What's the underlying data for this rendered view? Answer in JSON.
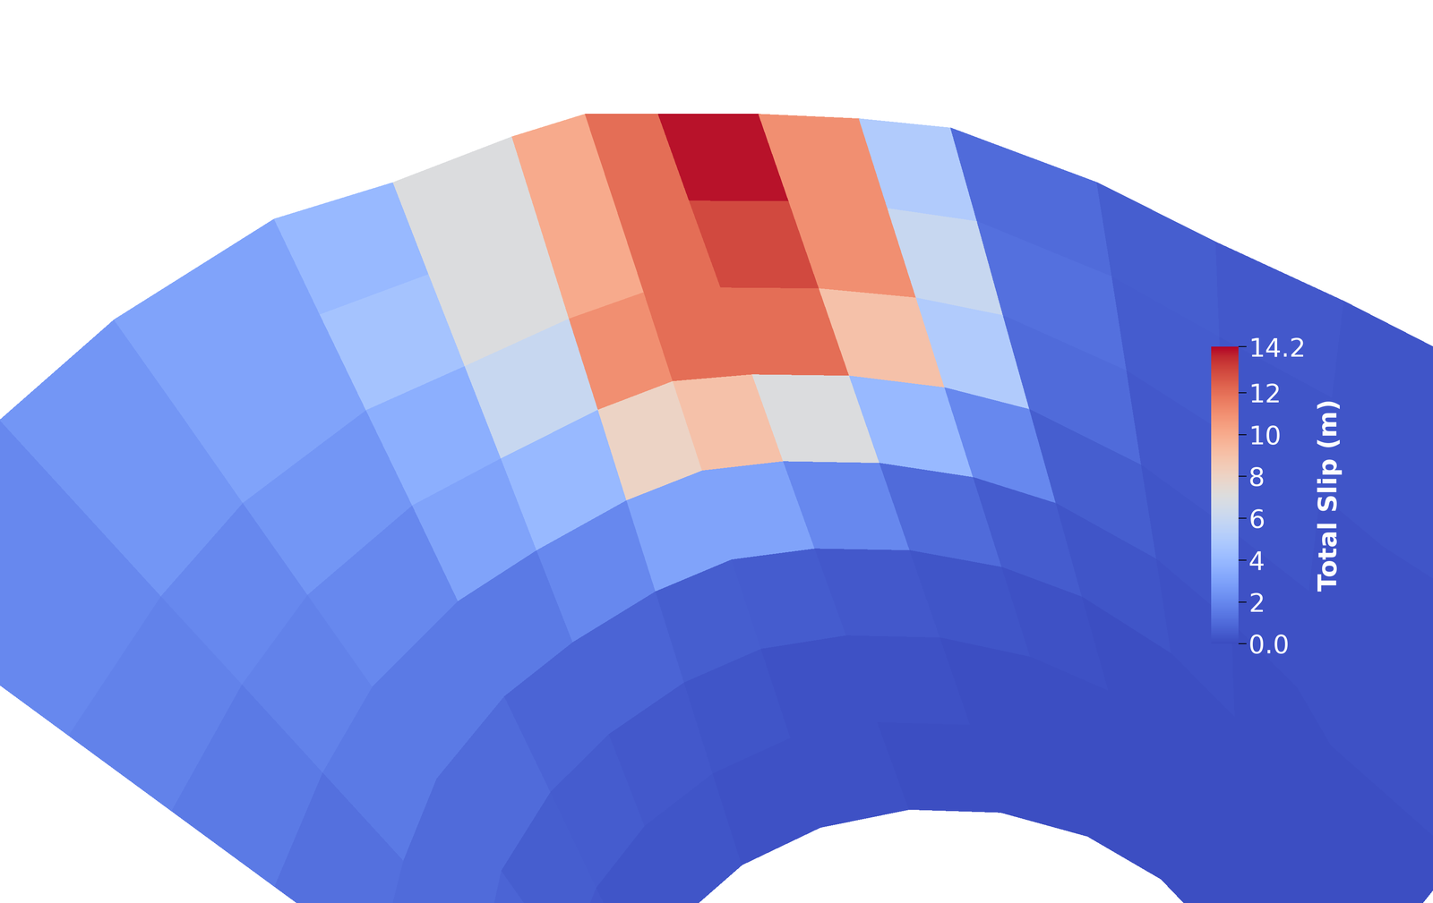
{
  "chart_data": {
    "type": "heatmap",
    "colorbar_label": "Total Slip (m)",
    "color": "coolwarm",
    "tick_labels": false,
    "clim": [
      0,
      14.2
    ],
    "colorbar_ticks": [
      {
        "value": 0,
        "label": "0.0"
      },
      2,
      4,
      6,
      8,
      10,
      12,
      14.2
    ],
    "cells": [
      [
        2,
        2.5,
        3,
        4,
        7,
        10,
        12,
        14,
        11,
        5,
        1,
        0.6,
        0.4,
        0.3,
        0.3
      ],
      [
        2,
        2.5,
        3,
        4.5,
        7,
        10,
        12,
        13,
        11,
        6,
        1.2,
        0.5,
        0.3,
        0.3,
        0.3
      ],
      [
        1.8,
        2,
        2.5,
        3.5,
        6,
        11,
        12,
        12,
        9,
        5,
        1,
        0.4,
        0.3,
        0.2,
        0.2
      ],
      [
        1.5,
        1.8,
        2,
        3,
        4,
        8,
        9,
        7,
        4,
        2,
        0.6,
        0.3,
        0.2,
        0.2,
        0.2
      ],
      [
        1.2,
        1.5,
        1.5,
        1.5,
        2,
        3,
        3,
        2,
        1,
        0.5,
        0.3,
        0.2,
        0.1,
        0.1,
        0.1
      ],
      [
        1,
        1,
        1,
        0.8,
        0.8,
        0.6,
        0.5,
        0.4,
        0.3,
        0.2,
        0.1,
        0.1,
        0.1,
        0.1,
        0.1
      ],
      [
        0.8,
        0.8,
        0.6,
        0.5,
        0.4,
        0.3,
        0.2,
        0.2,
        0.1,
        0.1,
        0.1,
        0.1,
        0.1,
        0.1,
        0.1
      ],
      [
        0.5,
        0.5,
        0.4,
        0.3,
        0.3,
        0.2,
        0.2,
        0.1,
        0.1,
        0.1,
        0.1,
        0.1,
        0.1,
        0.1,
        0.1
      ]
    ]
  }
}
